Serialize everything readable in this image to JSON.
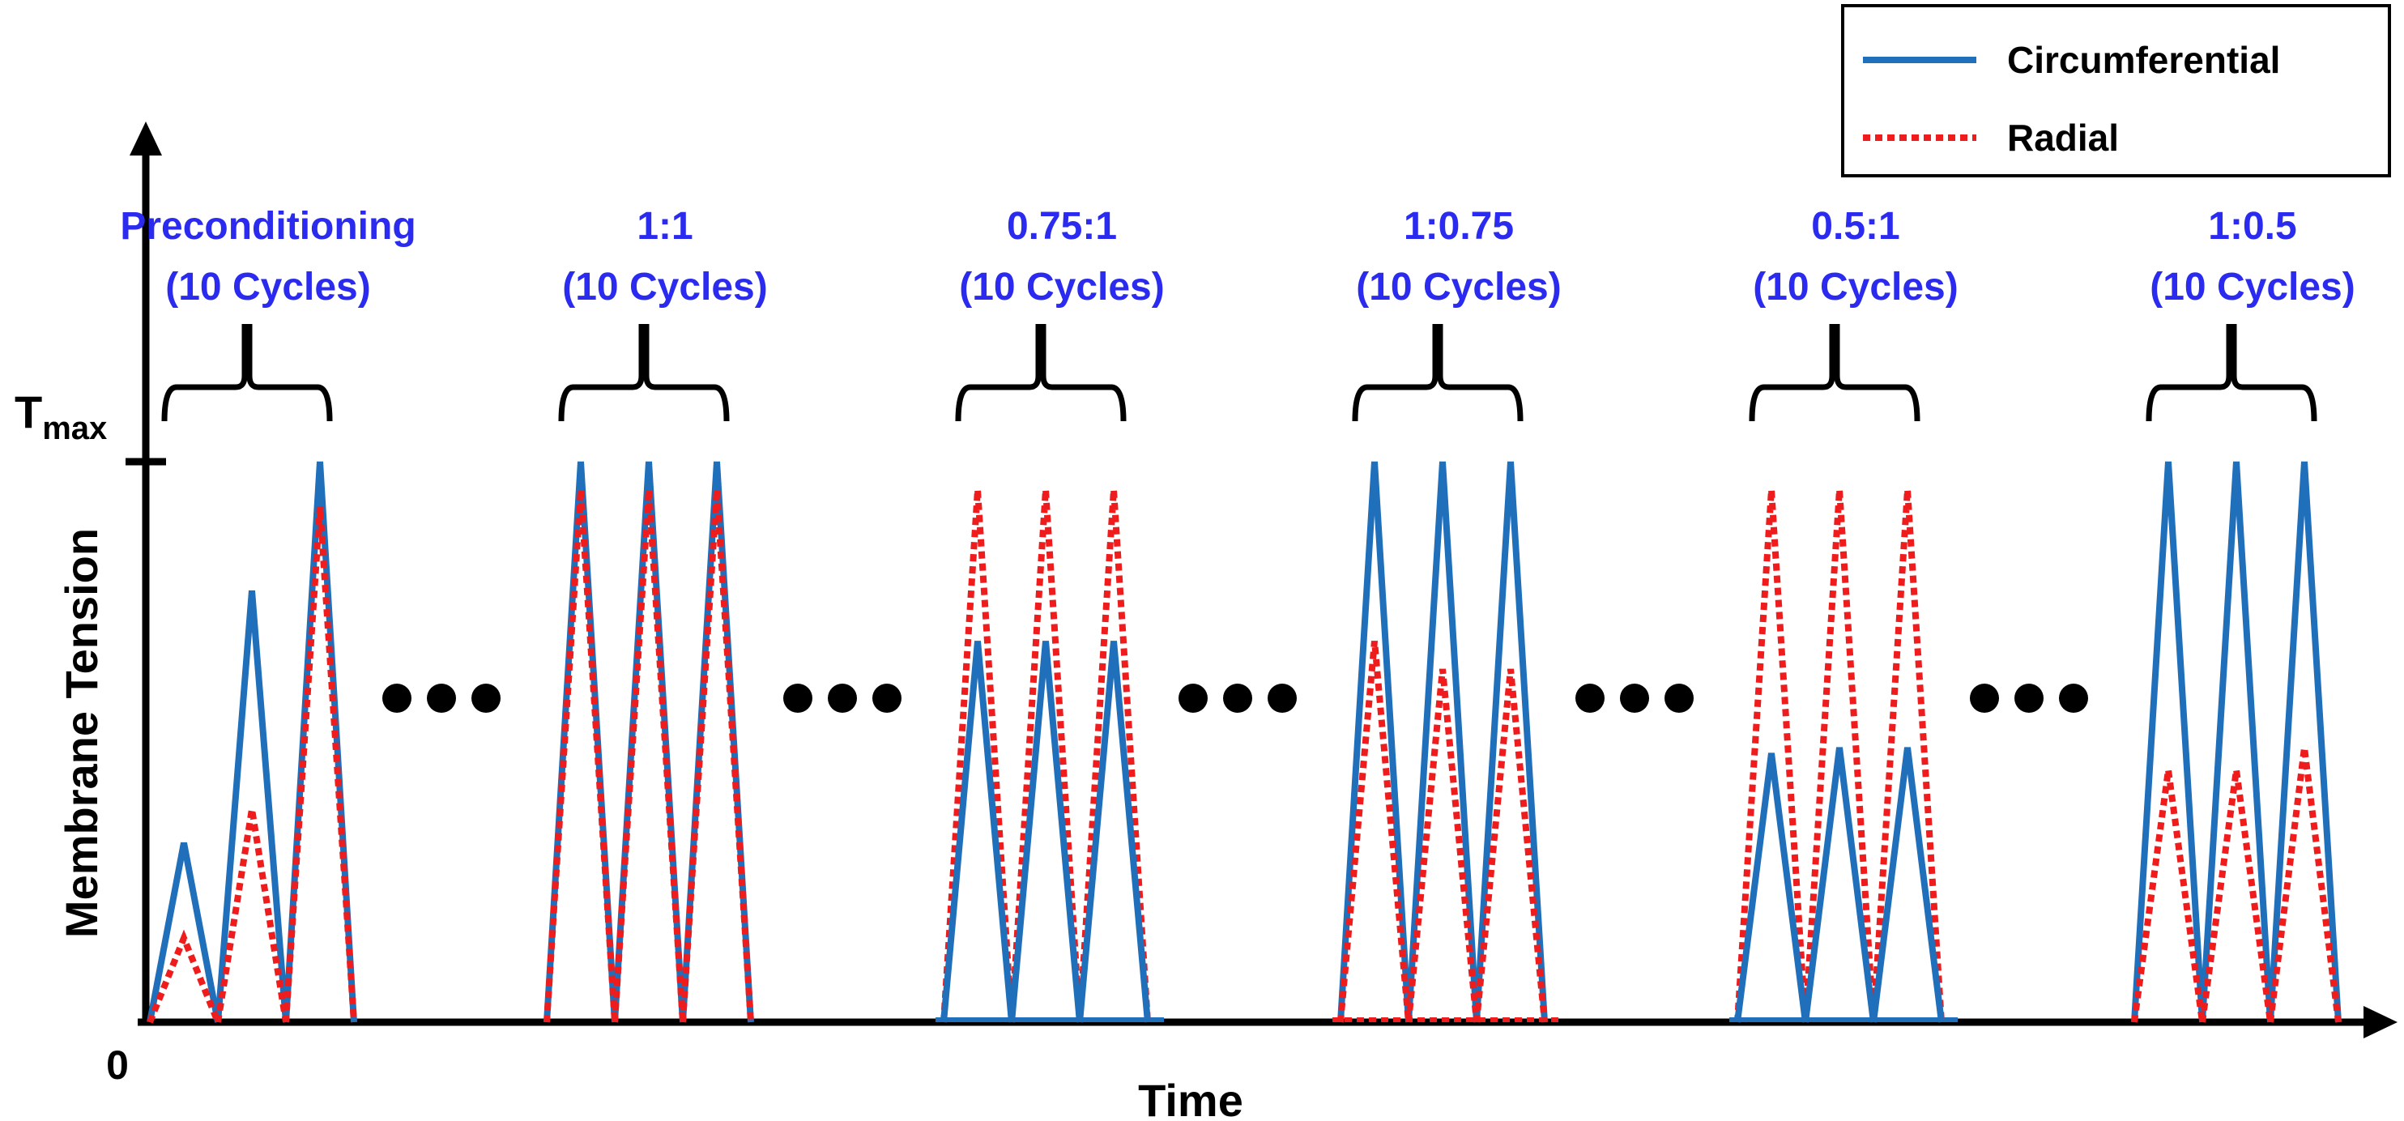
{
  "colors": {
    "circumferential": "#1f6fba",
    "radial": "#ee1c1c",
    "phase_label": "#2b2bf0",
    "axis": "#000000"
  },
  "chart_data": {
    "type": "line",
    "title": "",
    "xlabel": "Time",
    "ylabel": "Membrane Tension",
    "y_tick_max_label": "T",
    "y_tick_max_subscript": "max",
    "origin_label": "0",
    "ylim": [
      0,
      1
    ],
    "legend": {
      "position": "top-right",
      "entries": [
        {
          "name": "Circumferential",
          "style": "solid"
        },
        {
          "name": "Radial",
          "style": "dotted"
        }
      ]
    },
    "phases": [
      {
        "label": "Preconditioning",
        "cycles": "(10 Cycles)",
        "circumferential_peaks": [
          0.32,
          0.77,
          1.0
        ],
        "radial_peaks": [
          0.15,
          0.38,
          0.92
        ]
      },
      {
        "label": "1:1",
        "cycles": "(10 Cycles)",
        "circumferential_peaks": [
          1.0,
          1.0,
          1.0
        ],
        "radial_peaks": [
          0.95,
          0.95,
          0.95
        ]
      },
      {
        "label": "0.75:1",
        "cycles": "(10 Cycles)",
        "circumferential_peaks": [
          0.68,
          0.68,
          0.68
        ],
        "radial_peaks": [
          0.95,
          0.95,
          0.95
        ]
      },
      {
        "label": "1:0.75",
        "cycles": "(10 Cycles)",
        "circumferential_peaks": [
          1.0,
          1.0,
          1.0
        ],
        "radial_peaks": [
          0.68,
          0.63,
          0.63
        ]
      },
      {
        "label": "0.5:1",
        "cycles": "(10 Cycles)",
        "circumferential_peaks": [
          0.48,
          0.49,
          0.49
        ],
        "radial_peaks": [
          0.95,
          0.95,
          0.95
        ]
      },
      {
        "label": "1:0.5",
        "cycles": "(10 Cycles)",
        "circumferential_peaks": [
          1.0,
          1.0,
          1.0
        ],
        "radial_peaks": [
          0.45,
          0.45,
          0.49
        ]
      }
    ]
  }
}
